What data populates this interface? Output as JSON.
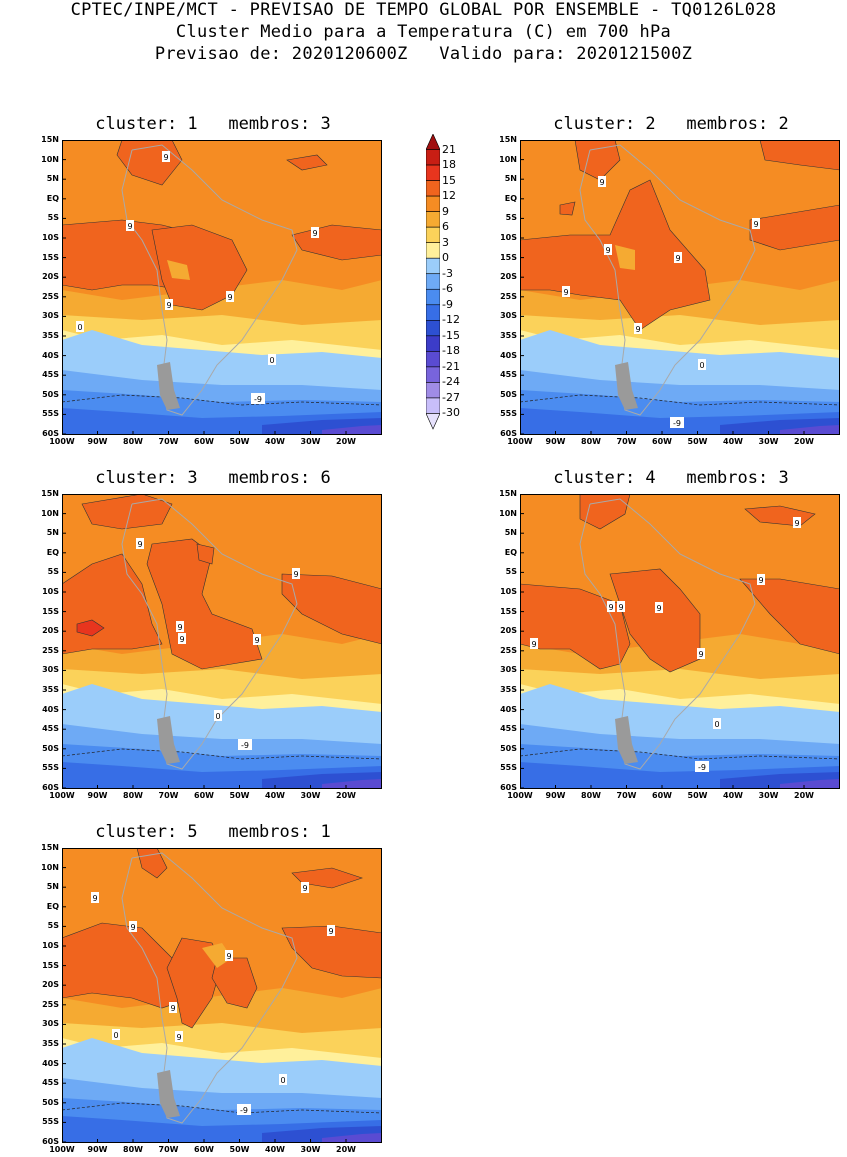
{
  "header": {
    "line1": "CPTEC/INPE/MCT - PREVISAO DE TEMPO GLOBAL POR ENSEMBLE - TQ0126L028",
    "line2": "Cluster Medio para a Temperatura (C) em 700 hPa",
    "line3": "Previsao de: 2020120600Z   Valido para: 2020121500Z"
  },
  "y_ticks": [
    "15N",
    "10N",
    "5N",
    "EQ",
    "5S",
    "10S",
    "15S",
    "20S",
    "25S",
    "30S",
    "35S",
    "40S",
    "45S",
    "50S",
    "55S",
    "60S"
  ],
  "x_ticks": [
    "100W",
    "90W",
    "80W",
    "70W",
    "60W",
    "50W",
    "40W",
    "30W",
    "20W"
  ],
  "colorbar": {
    "labels": [
      "21",
      "18",
      "15",
      "12",
      "9",
      "6",
      "3",
      "0",
      "-3",
      "-6",
      "-9",
      "-12",
      "-15",
      "-18",
      "-21",
      "-24",
      "-27",
      "-30"
    ],
    "colors": [
      "#a01010",
      "#c81e14",
      "#e8351e",
      "#f0641e",
      "#f58c23",
      "#f5aa32",
      "#fbd25a",
      "#fff09b",
      "#9bcdfa",
      "#6eaaf5",
      "#4b8cf0",
      "#376ee6",
      "#2d50d2",
      "#3c3cc8",
      "#5a4bd2",
      "#7864dc",
      "#a08ce6",
      "#c8befa",
      "#e6e1fc"
    ]
  },
  "panels": [
    {
      "title": "cluster: 1   membros: 3",
      "labels": [
        {
          "t": "9"
        },
        {
          "t": "9"
        },
        {
          "t": "9"
        },
        {
          "t": "9"
        },
        {
          "t": "9"
        },
        {
          "t": "0"
        },
        {
          "t": "0"
        },
        {
          "t": "-9"
        }
      ]
    },
    {
      "title": "cluster: 2   membros: 2",
      "labels": [
        {
          "t": "9"
        },
        {
          "t": "9"
        },
        {
          "t": "9"
        },
        {
          "t": "9"
        },
        {
          "t": "9"
        },
        {
          "t": "9"
        },
        {
          "t": "0"
        },
        {
          "t": "-9"
        }
      ]
    },
    {
      "title": "cluster: 3   membros: 6",
      "labels": [
        {
          "t": "9"
        },
        {
          "t": "9"
        },
        {
          "t": "9"
        },
        {
          "t": "9"
        },
        {
          "t": "9"
        },
        {
          "t": "0"
        },
        {
          "t": "-9"
        }
      ]
    },
    {
      "title": "cluster: 4   membros: 3",
      "labels": [
        {
          "t": "9"
        },
        {
          "t": "9"
        },
        {
          "t": "9"
        },
        {
          "t": "9"
        },
        {
          "t": "9"
        },
        {
          "t": "9"
        },
        {
          "t": "9"
        },
        {
          "t": "0"
        },
        {
          "t": "-9"
        }
      ]
    },
    {
      "title": "cluster: 5   membros: 1",
      "labels": [
        {
          "t": "9"
        },
        {
          "t": "9"
        },
        {
          "t": "9"
        },
        {
          "t": "9"
        },
        {
          "t": "9"
        },
        {
          "t": "9"
        },
        {
          "t": "9"
        },
        {
          "t": "0"
        },
        {
          "t": "0"
        },
        {
          "t": "-9"
        }
      ]
    }
  ]
}
